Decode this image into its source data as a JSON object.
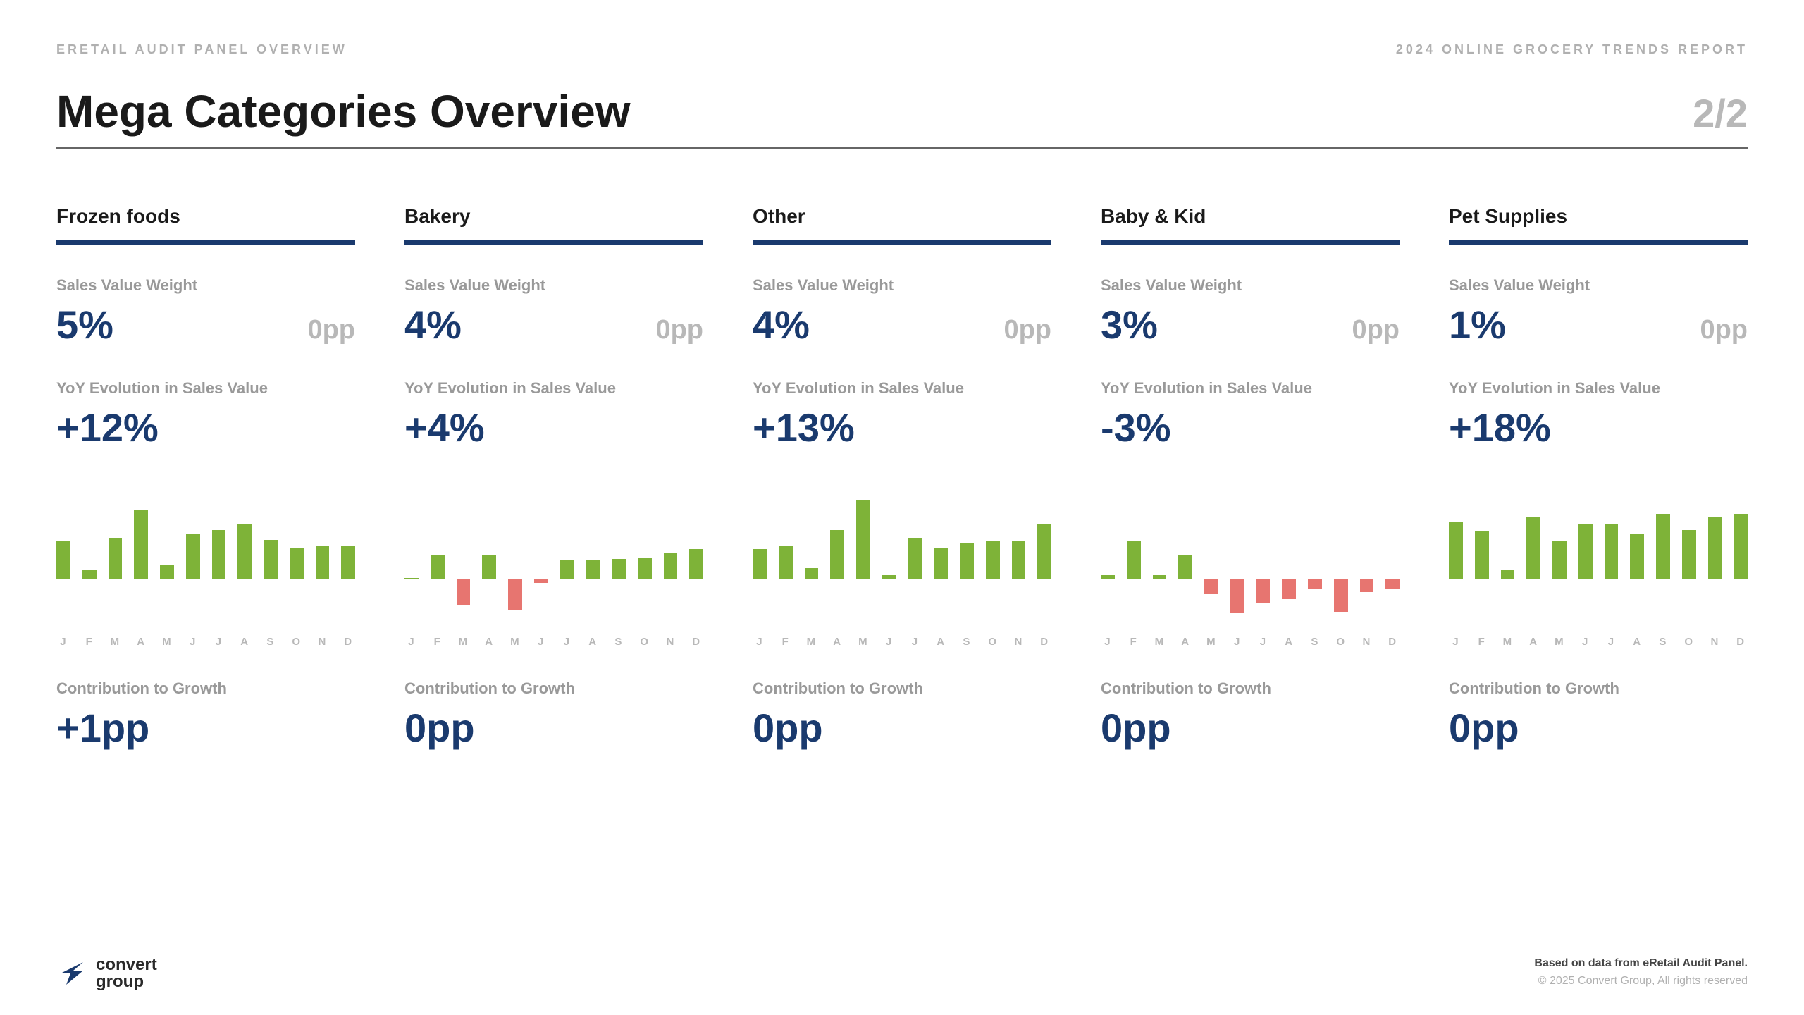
{
  "header": {
    "left": "ERETAIL AUDIT PANEL OVERVIEW",
    "right": "2024 ONLINE GROCERY TRENDS REPORT"
  },
  "title": "Mega Categories Overview",
  "page": "2/2",
  "labels": {
    "svw": "Sales Value Weight",
    "yoy": "YoY Evolution in Sales Value",
    "ctg": "Contribution to Growth"
  },
  "colors": {
    "accent": "#1a3a6e",
    "bar_pos": "#7eb338",
    "bar_neg": "#e77570",
    "muted": "#b8b8b8",
    "background": "#ffffff"
  },
  "months": [
    "J",
    "F",
    "M",
    "A",
    "M",
    "J",
    "J",
    "A",
    "S",
    "O",
    "N",
    "D"
  ],
  "chart": {
    "y_max": 100,
    "y_min": -50,
    "bar_gap_pct": 4
  },
  "categories": [
    {
      "name": "Frozen foods",
      "svw": "5%",
      "svw_delta": "0pp",
      "yoy": "+12%",
      "bars": [
        48,
        12,
        52,
        88,
        18,
        58,
        62,
        70,
        50,
        40,
        42,
        42
      ],
      "ctg": "+1pp"
    },
    {
      "name": "Bakery",
      "svw": "4%",
      "svw_delta": "0pp",
      "yoy": "+4%",
      "bars": [
        2,
        30,
        -32,
        30,
        -38,
        -4,
        24,
        24,
        26,
        28,
        34,
        38
      ],
      "ctg": "0pp"
    },
    {
      "name": "Other",
      "svw": "4%",
      "svw_delta": "0pp",
      "yoy": "+13%",
      "bars": [
        38,
        42,
        14,
        62,
        100,
        6,
        52,
        40,
        46,
        48,
        48,
        70
      ],
      "ctg": "0pp"
    },
    {
      "name": "Baby & Kid",
      "svw": "3%",
      "svw_delta": "0pp",
      "yoy": "-3%",
      "bars": [
        6,
        48,
        6,
        30,
        -18,
        -42,
        -30,
        -24,
        -12,
        -40,
        -16,
        -12
      ],
      "ctg": "0pp"
    },
    {
      "name": "Pet Supplies",
      "svw": "1%",
      "svw_delta": "0pp",
      "yoy": "+18%",
      "bars": [
        72,
        60,
        12,
        78,
        48,
        70,
        70,
        58,
        82,
        62,
        78,
        82
      ],
      "ctg": "0pp"
    }
  ],
  "footer": {
    "logo_line1": "convert",
    "logo_line2": "group",
    "line1": "Based on data from eRetail Audit Panel.",
    "line2": "© 2025 Convert Group, All rights reserved"
  }
}
